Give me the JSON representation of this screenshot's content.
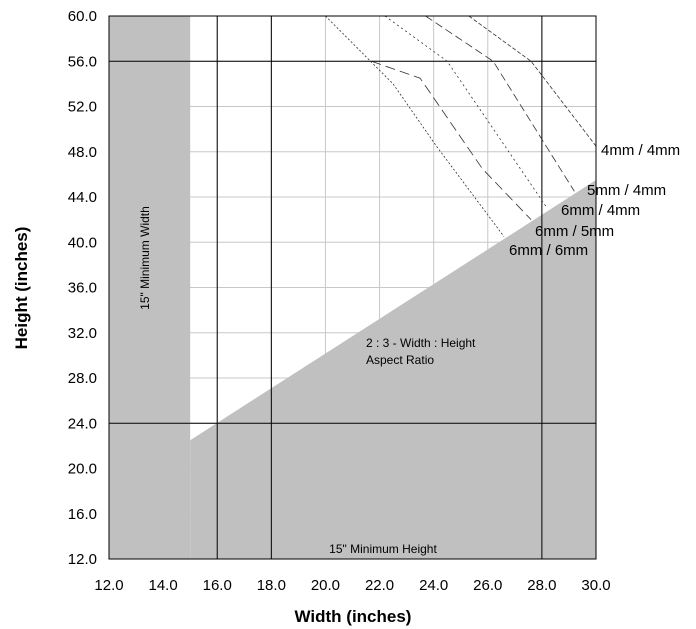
{
  "chart_data": {
    "type": "area",
    "xlabel": "Width (inches)",
    "ylabel": "Height (inches)",
    "xlim": [
      12.0,
      30.0
    ],
    "ylim": [
      12.0,
      60.0
    ],
    "x_ticks": [
      "12.0",
      "14.0",
      "16.0",
      "18.0",
      "20.0",
      "22.0",
      "24.0",
      "26.0",
      "28.0",
      "30.0"
    ],
    "y_ticks": [
      "12.0",
      "16.0",
      "20.0",
      "24.0",
      "28.0",
      "32.0",
      "36.0",
      "40.0",
      "44.0",
      "48.0",
      "52.0",
      "56.0",
      "60.0"
    ],
    "grid": true,
    "colors": {
      "excluded_region": "#c0c0c0",
      "frame": "#000000",
      "grid": "#c8c8c8"
    },
    "reference_lines": {
      "vertical_x": [
        16,
        18,
        28
      ],
      "horizontal_y": [
        24,
        56
      ]
    },
    "excluded_regions": [
      {
        "label": "15\" Minimum Width",
        "polygon": [
          [
            12,
            12
          ],
          [
            15,
            12
          ],
          [
            15,
            60
          ],
          [
            12,
            60
          ]
        ]
      },
      {
        "label": "15\" Minimum Height",
        "polygon": [
          [
            12,
            12
          ],
          [
            30,
            12
          ],
          [
            30,
            45.5
          ],
          [
            15,
            22.5
          ],
          [
            15,
            12
          ]
        ]
      }
    ],
    "annotations": [
      {
        "lines": [
          "2 : 3 - Width : Height",
          "Aspect Ratio"
        ]
      }
    ],
    "series": [
      {
        "name": "4mm / 4mm",
        "dash": "4,2",
        "points": [
          [
            25.3,
            60
          ],
          [
            27.6,
            56
          ],
          [
            30,
            48.5
          ]
        ]
      },
      {
        "name": "5mm / 4mm",
        "dash": "8,4",
        "points": [
          [
            23.7,
            60
          ],
          [
            26.2,
            56
          ],
          [
            29.2,
            44.5
          ]
        ]
      },
      {
        "name": "6mm / 4mm",
        "dash": "2,3",
        "points": [
          [
            22.2,
            60
          ],
          [
            24.5,
            56
          ],
          [
            28.2,
            43
          ]
        ]
      },
      {
        "name": "6mm / 5mm",
        "dash": "10,5",
        "points": [
          [
            21.7,
            56
          ],
          [
            23.5,
            54.5
          ],
          [
            25.8,
            46.5
          ],
          [
            27.6,
            42
          ]
        ]
      },
      {
        "name": "6mm / 6mm",
        "dash": "2,2",
        "points": [
          [
            20,
            60
          ],
          [
            22.5,
            54
          ],
          [
            24.1,
            48.5
          ],
          [
            26.6,
            40.5
          ]
        ]
      }
    ]
  }
}
